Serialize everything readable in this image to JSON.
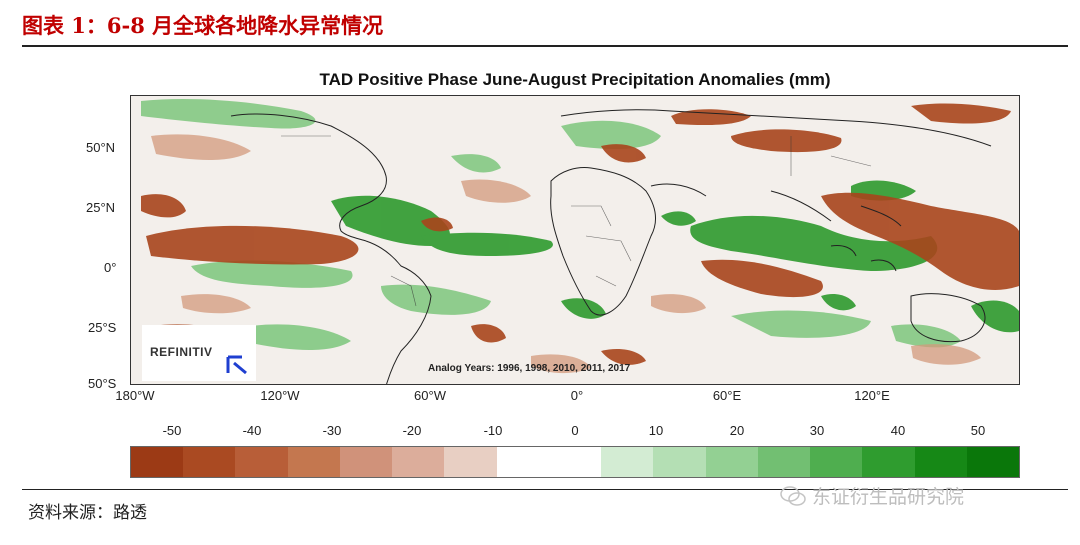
{
  "figure_title": "图表 1：6-8 月全球各地降水异常情况",
  "map": {
    "title": "TAD Positive Phase June-August Precipitation Anomalies (mm)",
    "lat_ticks": [
      "50°N",
      "25°N",
      "0°",
      "25°S",
      "50°S"
    ],
    "lon_ticks": [
      "180°W",
      "120°W",
      "60°W",
      "0°",
      "60°E",
      "120°E"
    ],
    "logo_text": "REFINITIV",
    "logo_icon": "refinitiv-logo-icon",
    "analog_years": "Analog Years: 1996, 1998, 2010, 2011, 2017"
  },
  "colorbar": {
    "tick_labels": [
      "-50",
      "-40",
      "-30",
      "-20",
      "-10",
      "0",
      "10",
      "20",
      "30",
      "40",
      "50"
    ],
    "colors": [
      "#9c3a15",
      "#aa4a22",
      "#b85e38",
      "#c4774f",
      "#d0927a",
      "#dcad9b",
      "#e8cfc3",
      "#ffffff",
      "#ffffff",
      "#d3ecd3",
      "#b4dfb4",
      "#93d093",
      "#72bf72",
      "#4fae4f",
      "#2f9c2f",
      "#168816",
      "#0a770a"
    ]
  },
  "source": "资料来源：路透",
  "watermark": "东证衍生品研究院"
}
